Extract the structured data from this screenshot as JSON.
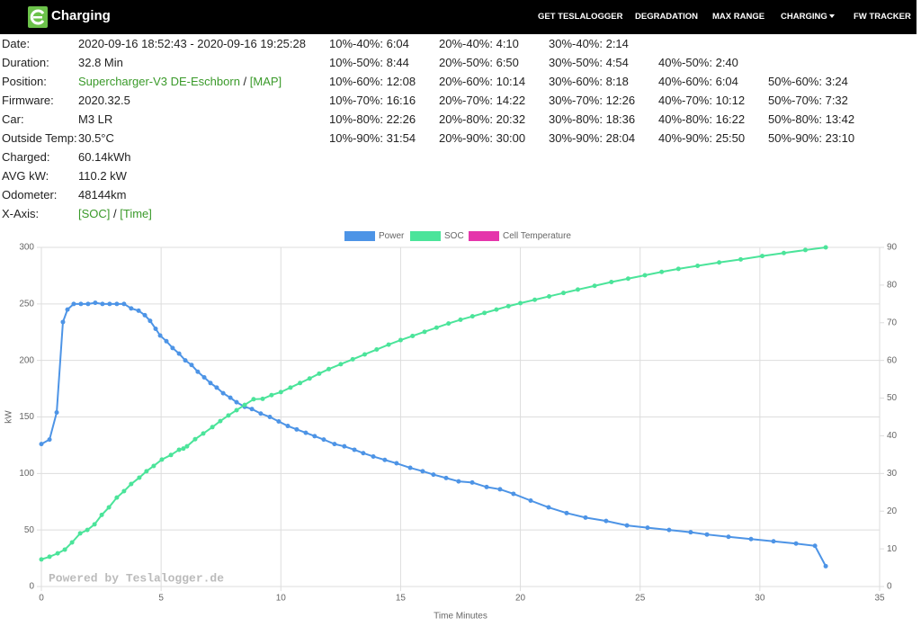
{
  "navbar": {
    "brand": "Charging",
    "items": [
      "GET TESLALOGGER",
      "DEGRADATION",
      "MAX RANGE",
      "CHARGING",
      "FW TRACKER"
    ]
  },
  "info": [
    {
      "label": "Date:",
      "parts": [
        "2020-09-16 18:52:43 - 2020-09-16 19:25:28"
      ]
    },
    {
      "label": "Duration:",
      "parts": [
        "32.8 Min"
      ]
    },
    {
      "label": "Position:",
      "parts": [
        "Supercharger-V3 DE-Eschborn",
        " / ",
        "[MAP]"
      ],
      "links": true
    },
    {
      "label": "Firmware:",
      "parts": [
        "2020.32.5"
      ]
    },
    {
      "label": "Car:",
      "parts": [
        "M3 LR"
      ]
    },
    {
      "label": "Outside Temp:",
      "parts": [
        "30.5°C"
      ]
    },
    {
      "label": "Charged:",
      "parts": [
        "60.14kWh"
      ]
    },
    {
      "label": "AVG kW:",
      "parts": [
        "110.2 kW"
      ]
    },
    {
      "label": "Odometer:",
      "parts": [
        "48144km"
      ]
    },
    {
      "label": "X-Axis:",
      "parts": [
        "[SOC]",
        " / ",
        "[Time]"
      ],
      "links": true
    }
  ],
  "durations": [
    [
      "10%-40%: 6:04",
      "20%-40%: 4:10",
      "30%-40%: 2:14"
    ],
    [
      "10%-50%: 8:44",
      "20%-50%: 6:50",
      "30%-50%: 4:54",
      "40%-50%: 2:40"
    ],
    [
      "10%-60%: 12:08",
      "20%-60%: 10:14",
      "30%-60%: 8:18",
      "40%-60%: 6:04",
      "50%-60%: 3:24"
    ],
    [
      "10%-70%: 16:16",
      "20%-70%: 14:22",
      "30%-70%: 12:26",
      "40%-70%: 10:12",
      "50%-70%: 7:32"
    ],
    [
      "10%-80%: 22:26",
      "20%-80%: 20:32",
      "30%-80%: 18:36",
      "40%-80%: 16:22",
      "50%-80%: 13:42"
    ],
    [
      "10%-90%: 31:54",
      "20%-90%: 30:00",
      "30%-90%: 28:04",
      "40%-90%: 25:50",
      "50%-90%: 23:10"
    ]
  ],
  "chart_data": {
    "type": "line",
    "x_label": "Time Minutes",
    "y_label": "kW",
    "annotation": "Powered by Teslalogger.de",
    "xlim": [
      0,
      35
    ],
    "xticks": [
      0,
      5,
      10,
      15,
      20,
      25,
      30,
      35
    ],
    "ylim": [
      0,
      300
    ],
    "yticks": [
      0,
      50,
      100,
      150,
      200,
      250,
      300
    ],
    "y2lim": [
      0,
      90
    ],
    "y2ticks": [
      0,
      10,
      20,
      30,
      40,
      50,
      60,
      70,
      80,
      90
    ],
    "grid": true,
    "legend": "top",
    "series": [
      {
        "name": "Power",
        "color": "#4d94e6",
        "x": [
          0,
          0.34,
          0.64,
          0.9,
          1.09,
          1.35,
          1.65,
          1.95,
          2.25,
          2.55,
          2.85,
          3.15,
          3.45,
          3.75,
          4.06,
          4.32,
          4.54,
          4.77,
          4.96,
          5.22,
          5.48,
          5.75,
          6.01,
          6.27,
          6.53,
          6.8,
          7.06,
          7.32,
          7.59,
          7.89,
          8.15,
          8.49,
          8.79,
          9.16,
          9.54,
          9.91,
          10.29,
          10.66,
          11.04,
          11.41,
          11.79,
          12.24,
          12.65,
          13.07,
          13.44,
          13.86,
          14.34,
          14.83,
          15.4,
          15.92,
          16.37,
          16.9,
          17.42,
          17.99,
          18.59,
          19.15,
          19.71,
          20.43,
          21.18,
          21.93,
          22.72,
          23.58,
          24.45,
          25.31,
          26.21,
          27.11,
          27.79,
          28.69,
          29.63,
          30.57,
          31.51,
          32.3,
          32.75
        ],
        "values": [
          126,
          130,
          154,
          234,
          245,
          250,
          250,
          250,
          251,
          250,
          250,
          250,
          250,
          246,
          244,
          240,
          235,
          228,
          222,
          217,
          211,
          206,
          200,
          196,
          190,
          185,
          180,
          176,
          171,
          167,
          163,
          159,
          157,
          153,
          150,
          146,
          142,
          139,
          136,
          133,
          130,
          126,
          124,
          121,
          118,
          115,
          112,
          109,
          105,
          102,
          99,
          96,
          93,
          92,
          88,
          86,
          82,
          76,
          70,
          65,
          61,
          58,
          54,
          52,
          50,
          48,
          46,
          44,
          42,
          40,
          38,
          36,
          18
        ]
      },
      {
        "name": "SOC",
        "color": "#4be49a",
        "axis": "y2",
        "x": [
          0,
          0.34,
          0.68,
          0.98,
          1.28,
          1.62,
          1.92,
          2.22,
          2.52,
          2.82,
          3.15,
          3.45,
          3.75,
          4.09,
          4.39,
          4.69,
          5.03,
          5.41,
          5.75,
          5.93,
          6.08,
          6.42,
          6.76,
          7.14,
          7.47,
          7.81,
          8.15,
          8.49,
          8.86,
          9.24,
          9.61,
          10,
          10.4,
          10.8,
          11.2,
          11.6,
          12,
          12.5,
          13,
          13.5,
          14,
          14.5,
          15,
          15.5,
          16,
          16.5,
          17,
          17.5,
          18,
          18.5,
          19,
          19.5,
          20,
          20.6,
          21.2,
          21.8,
          22.4,
          23.1,
          23.8,
          24.5,
          25.2,
          25.9,
          26.6,
          27.4,
          28.3,
          29.2,
          30.1,
          31,
          31.9,
          32.75
        ],
        "values": [
          7.2,
          7.9,
          8.8,
          9.8,
          11.7,
          14.1,
          15,
          16.5,
          19,
          21,
          23.6,
          25.3,
          27.2,
          28.9,
          30.6,
          32,
          33.7,
          34.9,
          36.3,
          36.6,
          37.2,
          39.1,
          40.6,
          42.3,
          43.9,
          45.4,
          46.8,
          48.2,
          49.7,
          49.8,
          50.8,
          51.6,
          52.8,
          54,
          55.2,
          56.5,
          57.7,
          59,
          60.3,
          61.6,
          62.9,
          64.2,
          65.4,
          66.5,
          67.6,
          68.7,
          69.8,
          70.8,
          71.7,
          72.6,
          73.5,
          74.4,
          75.2,
          76.1,
          77,
          77.9,
          78.8,
          79.8,
          80.8,
          81.7,
          82.6,
          83.5,
          84.3,
          85.1,
          86,
          86.8,
          87.7,
          88.5,
          89.3,
          90
        ]
      },
      {
        "name": "Cell Temperature",
        "color": "#e535ab",
        "axis": "y2",
        "x": [],
        "values": []
      }
    ]
  }
}
